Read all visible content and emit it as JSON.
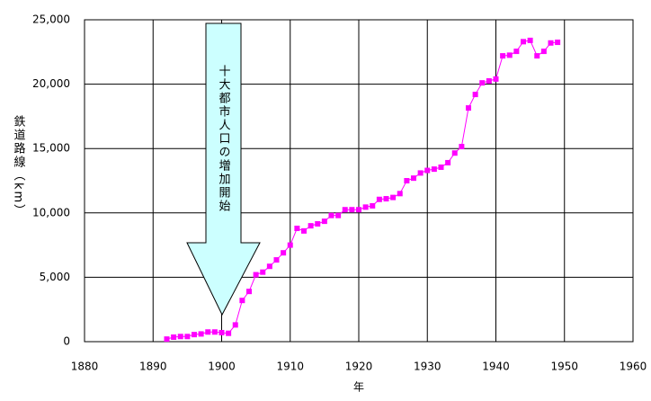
{
  "chart_data": {
    "type": "line",
    "x_label": "年",
    "y_label": "鉄道路線（km）",
    "annotation": "十大都市人口の増加開始",
    "x": [
      1892,
      1893,
      1894,
      1895,
      1896,
      1897,
      1898,
      1899,
      1900,
      1901,
      1902,
      1903,
      1904,
      1905,
      1906,
      1907,
      1908,
      1909,
      1910,
      1911,
      1912,
      1913,
      1914,
      1915,
      1916,
      1917,
      1918,
      1919,
      1920,
      1921,
      1922,
      1923,
      1924,
      1925,
      1926,
      1927,
      1928,
      1929,
      1930,
      1931,
      1932,
      1933,
      1934,
      1935,
      1936,
      1937,
      1938,
      1939,
      1940,
      1941,
      1942,
      1943,
      1944,
      1945,
      1946,
      1947,
      1948,
      1949
    ],
    "series": [
      {
        "color": "#ff00ff",
        "values": [
          200,
          350,
          400,
          400,
          550,
          600,
          750,
          750,
          700,
          650,
          1300,
          3200,
          3900,
          5200,
          5400,
          5850,
          6350,
          6900,
          7500,
          8800,
          8600,
          9000,
          9150,
          9350,
          9800,
          9800,
          10250,
          10250,
          10250,
          10450,
          10550,
          11050,
          11100,
          11200,
          11500,
          12500,
          12700,
          13100,
          13300,
          13400,
          13550,
          13900,
          14650,
          15150,
          18150,
          19200,
          20100,
          20250,
          20400,
          22200,
          22250,
          22550,
          23300,
          23400,
          22200,
          22550,
          23200,
          23250
        ]
      }
    ],
    "xlim": [
      1880,
      1960
    ],
    "xticks": [
      1880,
      1890,
      1900,
      1910,
      1920,
      1930,
      1940,
      1950,
      1960
    ],
    "ylim": [
      0,
      25000
    ],
    "yticks": [
      0,
      {
        "value": 5000,
        "label": "5,000"
      },
      {
        "value": 10000,
        "label": "10,000"
      },
      {
        "value": 15000,
        "label": "15,000"
      },
      {
        "value": 20000,
        "label": "20,000"
      },
      {
        "value": 25000,
        "label": "25,000"
      }
    ],
    "grid": true
  }
}
